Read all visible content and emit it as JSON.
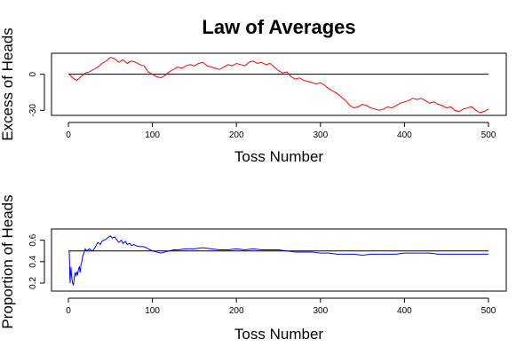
{
  "figure_title": "Law of Averages",
  "chart_data": [
    {
      "type": "line",
      "title": "",
      "xlabel": "Toss Number",
      "ylabel": "Excess of Heads",
      "xlim": [
        0,
        500
      ],
      "ylim": [
        -32,
        16
      ],
      "x_ticks": [
        0,
        100,
        200,
        300,
        400,
        500
      ],
      "y_ticks": [
        -30,
        0
      ],
      "reference_line": 0,
      "color": "#ff0000",
      "grid": false,
      "series": [
        {
          "x": [
            1,
            5,
            10,
            15,
            20,
            25,
            30,
            35,
            40,
            45,
            50,
            55,
            60,
            65,
            70,
            75,
            80,
            85,
            90,
            95,
            100,
            105,
            110,
            115,
            120,
            125,
            130,
            135,
            140,
            145,
            150,
            155,
            160,
            165,
            170,
            175,
            180,
            185,
            190,
            195,
            200,
            205,
            210,
            215,
            220,
            225,
            230,
            235,
            240,
            245,
            250,
            255,
            260,
            265,
            270,
            275,
            280,
            285,
            290,
            295,
            300,
            305,
            310,
            315,
            320,
            325,
            330,
            335,
            340,
            345,
            350,
            355,
            360,
            365,
            370,
            375,
            380,
            385,
            390,
            395,
            400,
            405,
            410,
            415,
            420,
            425,
            430,
            435,
            440,
            445,
            450,
            455,
            460,
            465,
            470,
            475,
            480,
            485,
            490,
            495,
            500
          ],
          "y": [
            0,
            -3,
            -5,
            -2,
            1,
            2,
            4,
            6,
            9,
            11,
            14,
            13,
            10,
            12,
            9,
            11,
            10,
            8,
            7,
            2,
            0,
            -2,
            -3,
            -1,
            2,
            4,
            6,
            5,
            7,
            8,
            7,
            9,
            10,
            7,
            6,
            5,
            4,
            6,
            8,
            7,
            9,
            8,
            7,
            10,
            11,
            9,
            10,
            8,
            9,
            6,
            3,
            1,
            2,
            -2,
            -4,
            -3,
            -5,
            -6,
            -7,
            -8,
            -7,
            -9,
            -12,
            -14,
            -16,
            -19,
            -22,
            -26,
            -28,
            -27,
            -25,
            -26,
            -28,
            -29,
            -30,
            -29,
            -27,
            -28,
            -26,
            -24,
            -23,
            -22,
            -20,
            -21,
            -20,
            -22,
            -24,
            -23,
            -25,
            -26,
            -28,
            -27,
            -30,
            -31,
            -29,
            -28,
            -27,
            -30,
            -32,
            -31,
            -29
          ]
        }
      ]
    },
    {
      "type": "line",
      "title": "",
      "xlabel": "Toss Number",
      "ylabel": "Proportion of Heads",
      "xlim": [
        0,
        500
      ],
      "ylim": [
        0.15,
        0.68
      ],
      "x_ticks": [
        0,
        100,
        200,
        300,
        400,
        500
      ],
      "y_ticks": [
        0.2,
        0.4,
        0.6
      ],
      "y_tick_labels": [
        "0.2",
        "0.4",
        "0.6"
      ],
      "reference_line": 0.5,
      "color": "#0000ff",
      "grid": false,
      "series": [
        {
          "x": [
            1,
            2,
            3,
            4,
            5,
            6,
            7,
            8,
            9,
            10,
            11,
            12,
            13,
            14,
            15,
            16,
            17,
            18,
            20,
            22,
            25,
            28,
            30,
            33,
            35,
            38,
            40,
            42,
            45,
            48,
            50,
            52,
            55,
            58,
            60,
            63,
            65,
            68,
            70,
            73,
            75,
            78,
            80,
            85,
            90,
            95,
            100,
            105,
            110,
            115,
            120,
            125,
            130,
            140,
            150,
            160,
            170,
            180,
            190,
            200,
            210,
            220,
            230,
            240,
            250,
            260,
            270,
            280,
            290,
            300,
            310,
            320,
            330,
            340,
            350,
            360,
            370,
            380,
            390,
            400,
            410,
            420,
            430,
            440,
            450,
            460,
            470,
            480,
            490,
            500
          ],
          "y": [
            0.5,
            0.2,
            0.35,
            0.25,
            0.2,
            0.18,
            0.25,
            0.3,
            0.27,
            0.3,
            0.28,
            0.33,
            0.35,
            0.3,
            0.37,
            0.4,
            0.45,
            0.47,
            0.52,
            0.5,
            0.52,
            0.5,
            0.51,
            0.55,
            0.58,
            0.56,
            0.59,
            0.6,
            0.61,
            0.63,
            0.64,
            0.62,
            0.63,
            0.6,
            0.58,
            0.6,
            0.57,
            0.59,
            0.56,
            0.57,
            0.55,
            0.56,
            0.55,
            0.54,
            0.54,
            0.52,
            0.5,
            0.49,
            0.48,
            0.49,
            0.5,
            0.51,
            0.51,
            0.52,
            0.52,
            0.53,
            0.52,
            0.51,
            0.51,
            0.52,
            0.51,
            0.52,
            0.51,
            0.51,
            0.51,
            0.5,
            0.49,
            0.49,
            0.49,
            0.48,
            0.48,
            0.47,
            0.47,
            0.47,
            0.46,
            0.47,
            0.47,
            0.47,
            0.47,
            0.48,
            0.48,
            0.48,
            0.48,
            0.47,
            0.47,
            0.47,
            0.47,
            0.47,
            0.47,
            0.47
          ]
        }
      ]
    }
  ]
}
